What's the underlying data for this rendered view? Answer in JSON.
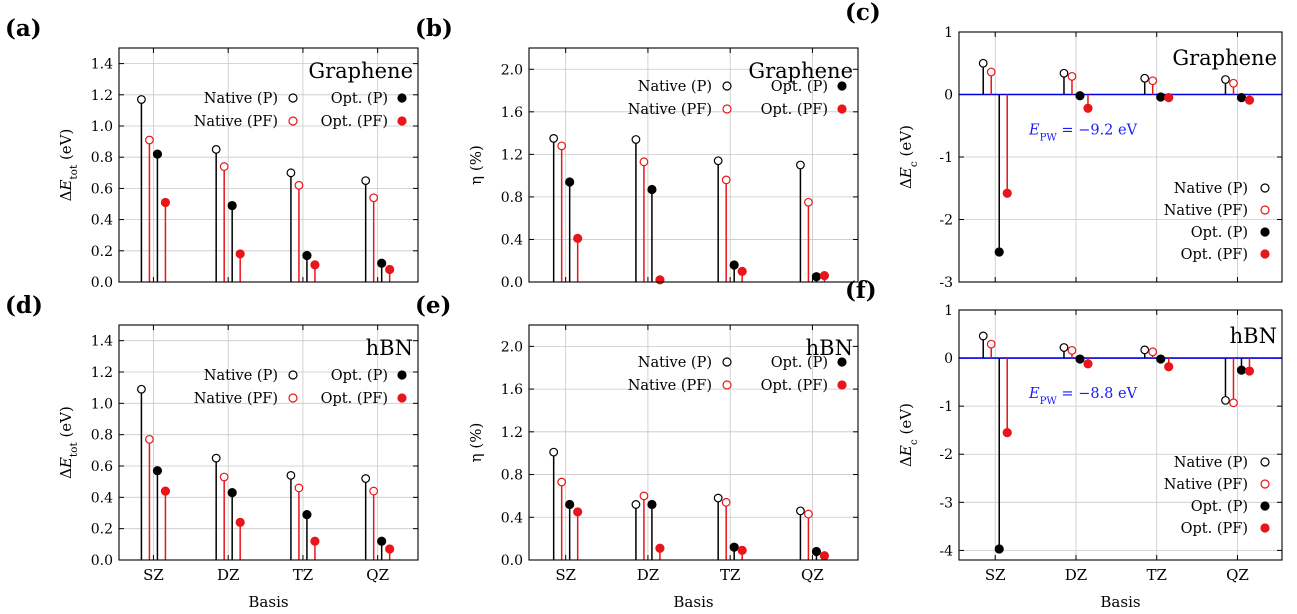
{
  "figure": {
    "categories": [
      "SZ",
      "DZ",
      "TZ",
      "QZ"
    ],
    "xlabel": "Basis",
    "legend": [
      "Native (P)",
      "Native (PF)",
      "Opt. (P)",
      "Opt. (PF)"
    ],
    "colors": {
      "black": "#000000",
      "red": "#e8151b",
      "reference_line": "#0000e0",
      "grid": "#c8c8c8"
    }
  },
  "chart_data": [
    {
      "id": "a",
      "panel_label": "(a)",
      "type": "scatter",
      "title": "Graphene",
      "ylabel": "ΔE_tot (eV)",
      "ylim": [
        0,
        1.5
      ],
      "yticks": [
        0.0,
        0.2,
        0.4,
        0.6,
        0.8,
        1.0,
        1.2,
        1.4
      ],
      "ytick_labels": [
        "0.0",
        "0.2",
        "0.4",
        "0.6",
        "0.8",
        "1.0",
        "1.2",
        "1.4"
      ],
      "categories": [
        "SZ",
        "DZ",
        "TZ",
        "QZ"
      ],
      "xlabel": "",
      "series": [
        {
          "name": "Native (P)",
          "values": [
            1.17,
            0.85,
            0.7,
            0.65
          ]
        },
        {
          "name": "Native (PF)",
          "values": [
            0.91,
            0.74,
            0.62,
            0.54
          ]
        },
        {
          "name": "Opt. (P)",
          "values": [
            0.82,
            0.49,
            0.17,
            0.12
          ]
        },
        {
          "name": "Opt. (PF)",
          "values": [
            0.51,
            0.18,
            0.11,
            0.08
          ]
        }
      ]
    },
    {
      "id": "b",
      "panel_label": "(b)",
      "type": "scatter",
      "title": "Graphene",
      "ylabel": "η (%)",
      "ylim": [
        0,
        2.2
      ],
      "yticks": [
        0.0,
        0.4,
        0.8,
        1.2,
        1.6,
        2.0
      ],
      "ytick_labels": [
        "0.0",
        "0.4",
        "0.8",
        "1.2",
        "1.6",
        "2.0"
      ],
      "categories": [
        "SZ",
        "DZ",
        "TZ",
        "QZ"
      ],
      "xlabel": "",
      "series": [
        {
          "name": "Native (P)",
          "values": [
            1.35,
            1.34,
            1.14,
            1.1
          ]
        },
        {
          "name": "Native (PF)",
          "values": [
            1.28,
            1.13,
            0.96,
            0.75
          ]
        },
        {
          "name": "Opt. (P)",
          "values": [
            0.94,
            0.87,
            0.16,
            0.05
          ]
        },
        {
          "name": "Opt. (PF)",
          "values": [
            0.41,
            0.02,
            0.1,
            0.06
          ]
        }
      ]
    },
    {
      "id": "c",
      "panel_label": "(c)",
      "type": "scatter",
      "title": "Graphene",
      "ylabel": "ΔE_c (eV)",
      "ylim": [
        -3,
        1
      ],
      "yticks": [
        -3,
        -2,
        -1,
        0,
        1
      ],
      "ytick_labels": [
        "-3",
        "-2",
        "-1",
        "0",
        "1"
      ],
      "categories": [
        "SZ",
        "DZ",
        "TZ",
        "QZ"
      ],
      "xlabel": "",
      "annotation": "E_PW = −9.2 eV",
      "series": [
        {
          "name": "Native (P)",
          "values": [
            0.5,
            0.34,
            0.26,
            0.24
          ]
        },
        {
          "name": "Native (PF)",
          "values": [
            0.36,
            0.29,
            0.22,
            0.18
          ]
        },
        {
          "name": "Opt. (P)",
          "values": [
            -2.52,
            -0.02,
            -0.04,
            -0.05
          ]
        },
        {
          "name": "Opt. (PF)",
          "values": [
            -1.58,
            -0.22,
            -0.05,
            -0.09
          ]
        }
      ]
    },
    {
      "id": "d",
      "panel_label": "(d)",
      "type": "scatter",
      "title": "hBN",
      "ylabel": "ΔE_tot (eV)",
      "ylim": [
        0,
        1.5
      ],
      "yticks": [
        0.0,
        0.2,
        0.4,
        0.6,
        0.8,
        1.0,
        1.2,
        1.4
      ],
      "ytick_labels": [
        "0.0",
        "0.2",
        "0.4",
        "0.6",
        "0.8",
        "1.0",
        "1.2",
        "1.4"
      ],
      "categories": [
        "SZ",
        "DZ",
        "TZ",
        "QZ"
      ],
      "xlabel": "Basis",
      "series": [
        {
          "name": "Native (P)",
          "values": [
            1.09,
            0.65,
            0.54,
            0.52
          ]
        },
        {
          "name": "Native (PF)",
          "values": [
            0.77,
            0.53,
            0.46,
            0.44
          ]
        },
        {
          "name": "Opt. (P)",
          "values": [
            0.57,
            0.43,
            0.29,
            0.12
          ]
        },
        {
          "name": "Opt. (PF)",
          "values": [
            0.44,
            0.24,
            0.12,
            0.07
          ]
        }
      ]
    },
    {
      "id": "e",
      "panel_label": "(e)",
      "type": "scatter",
      "title": "hBN",
      "ylabel": "η (%)",
      "ylim": [
        0,
        2.2
      ],
      "yticks": [
        0.0,
        0.4,
        0.8,
        1.2,
        1.6,
        2.0
      ],
      "ytick_labels": [
        "0.0",
        "0.4",
        "0.8",
        "1.2",
        "1.6",
        "2.0"
      ],
      "categories": [
        "SZ",
        "DZ",
        "TZ",
        "QZ"
      ],
      "xlabel": "Basis",
      "series": [
        {
          "name": "Native (P)",
          "values": [
            1.01,
            0.52,
            0.58,
            0.46
          ]
        },
        {
          "name": "Native (PF)",
          "values": [
            0.73,
            0.6,
            0.54,
            0.43
          ]
        },
        {
          "name": "Opt. (P)",
          "values": [
            0.52,
            0.52,
            0.12,
            0.08
          ]
        },
        {
          "name": "Opt. (PF)",
          "values": [
            0.45,
            0.11,
            0.09,
            0.04
          ]
        }
      ]
    },
    {
      "id": "f",
      "panel_label": "(f)",
      "type": "scatter",
      "title": "hBN",
      "ylabel": "ΔE_c (eV)",
      "ylim": [
        -4.2,
        1
      ],
      "yticks": [
        -4,
        -3,
        -2,
        -1,
        0,
        1
      ],
      "ytick_labels": [
        "-4",
        "-3",
        "-2",
        "-1",
        "0",
        "1"
      ],
      "categories": [
        "SZ",
        "DZ",
        "TZ",
        "QZ"
      ],
      "xlabel": "Basis",
      "annotation": "E_PW = −8.8 eV",
      "series": [
        {
          "name": "Native (P)",
          "values": [
            0.46,
            0.22,
            0.17,
            -0.88
          ]
        },
        {
          "name": "Native (PF)",
          "values": [
            0.29,
            0.16,
            0.13,
            -0.93
          ]
        },
        {
          "name": "Opt. (P)",
          "values": [
            -3.97,
            -0.02,
            -0.02,
            -0.25
          ]
        },
        {
          "name": "Opt. (PF)",
          "values": [
            -1.55,
            -0.12,
            -0.18,
            -0.27
          ]
        }
      ]
    }
  ]
}
